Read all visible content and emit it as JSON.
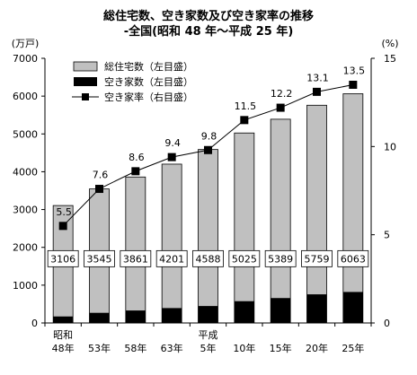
{
  "chart_data": {
    "type": "bar",
    "title": "総住宅数、空き家数及び空き家率の推移",
    "subtitle": "-全国(昭和 48 年～平成 25 年)",
    "left_unit": "(万戸)",
    "right_unit": "(%)",
    "categories": [
      [
        "昭和",
        "48年"
      ],
      [
        "53年"
      ],
      [
        "58年"
      ],
      [
        "63年"
      ],
      [
        "平成",
        "5年"
      ],
      [
        "10年"
      ],
      [
        "15年"
      ],
      [
        "20年"
      ],
      [
        "25年"
      ]
    ],
    "series": [
      {
        "name": "総住宅数（左目盛）",
        "axis": "left",
        "kind": "bar",
        "color": "#c0c0c0",
        "values": [
          3106,
          3545,
          3861,
          4201,
          4588,
          5025,
          5389,
          5759,
          6063
        ]
      },
      {
        "name": "空き家数（左目盛）",
        "axis": "left",
        "kind": "bar",
        "color": "#000000",
        "values": [
          172,
          268,
          330,
          394,
          448,
          576,
          659,
          757,
          820
        ]
      },
      {
        "name": "空き家率（右目盛）",
        "axis": "right",
        "kind": "line",
        "color": "#000000",
        "values": [
          5.5,
          7.6,
          8.6,
          9.4,
          9.8,
          11.5,
          12.2,
          13.1,
          13.5
        ]
      }
    ],
    "left_axis": {
      "min": 0,
      "max": 7000,
      "ticks": [
        0,
        1000,
        2000,
        3000,
        4000,
        5000,
        6000,
        7000
      ]
    },
    "right_axis": {
      "min": 0,
      "max": 15,
      "ticks": [
        0,
        5,
        10,
        15
      ]
    },
    "legend_position": "top-left",
    "grid": false
  }
}
